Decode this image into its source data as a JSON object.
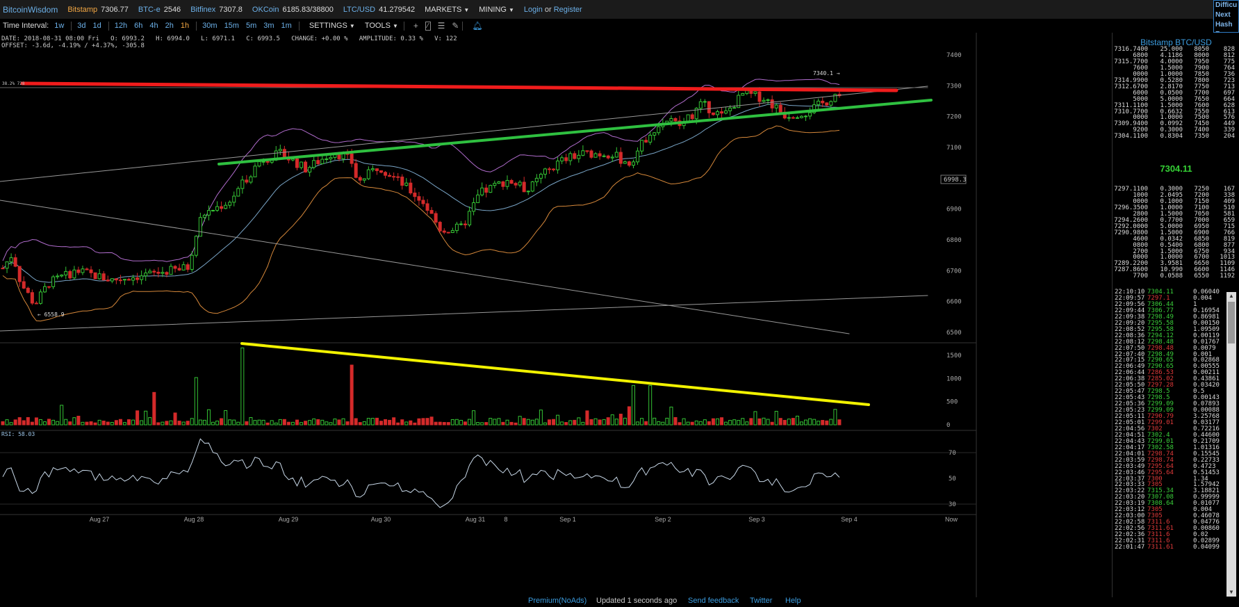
{
  "header": {
    "brand": "BitcoinWisdom",
    "markets": [
      {
        "name": "Bitstamp",
        "price": "7306.77",
        "active": true
      },
      {
        "name": "BTC-e",
        "price": "2546",
        "active": false
      },
      {
        "name": "Bitfinex",
        "price": "7307.8",
        "active": false
      },
      {
        "name": "OKCoin",
        "price": "6185.83/38800",
        "active": false
      },
      {
        "name": "LTC/USD",
        "price": "41.279542",
        "active": false
      }
    ],
    "menus": [
      "MARKETS",
      "MINING"
    ],
    "login": "Login",
    "or": "or",
    "register": "Register",
    "difficulty": [
      "Difficu",
      "Next",
      "Hash R"
    ]
  },
  "toolbar": {
    "time_interval_label": "Time Interval:",
    "intervals": [
      "1w",
      "3d",
      "1d",
      "12h",
      "6h",
      "4h",
      "2h",
      "1h",
      "30m",
      "15m",
      "5m",
      "3m",
      "1m"
    ],
    "settings": "SETTINGS",
    "tools": "TOOLS"
  },
  "info": {
    "line1": "DATE: 2018-08-31 08:00 Fri   O: 6993.2   H: 6994.0   L: 6971.1   C: 6993.5   CHANGE: +0.00 %   AMPLITUDE: 0.33 %   V: 122",
    "line2": "OFFSET: -3.6d, -4.19% / +4.37%, -305.8"
  },
  "chart": {
    "price_ticks": [
      "7400",
      "7300",
      "7200",
      "7100",
      "7000",
      "6900",
      "6800",
      "6700",
      "6600",
      "6500"
    ],
    "volume_ticks": [
      "1500",
      "1000",
      "500",
      "0"
    ],
    "rsi_ticks": [
      "70",
      "50",
      "30"
    ],
    "x_labels": [
      "Aug 27",
      "Aug 28",
      "Aug 29",
      "Aug 30",
      "Aug 31",
      "8",
      "Sep 1",
      "Sep 2",
      "Sep 3",
      "Sep 4",
      "Now"
    ],
    "current_price_tag": "6998.3",
    "high_label": "7340.1 →",
    "low_label": "← 6558.9",
    "fib_label": "38.2% 728",
    "rsi_label": "RSI: 58.03",
    "colors": {
      "up": "#35c435",
      "down": "#d42a2a",
      "red_line": "#f01c1c",
      "green_line": "#2fc040",
      "yellow_line": "#f2f200",
      "upper_band": "#b06ccc",
      "lower_band": "#d6883a",
      "mid_band": "#7aa6c8"
    }
  },
  "orderbook": {
    "title": "Bitstamp BTC/USD",
    "asks": [
      [
        "7316.7400",
        "25.000",
        "8050",
        "828"
      ],
      [
        "6800",
        "4.1186",
        "8000",
        "812"
      ],
      [
        "7315.7700",
        "4.0000",
        "7950",
        "775"
      ],
      [
        "7600",
        "1.5000",
        "7900",
        "764"
      ],
      [
        "0000",
        "1.0000",
        "7850",
        "736"
      ],
      [
        "7314.9900",
        "0.5280",
        "7800",
        "723"
      ],
      [
        "7312.6700",
        "2.8170",
        "7750",
        "713"
      ],
      [
        "6000",
        "0.0500",
        "7700",
        "697"
      ],
      [
        "5000",
        "5.0000",
        "7650",
        "664"
      ],
      [
        "7311.1100",
        "1.5000",
        "7600",
        "628"
      ],
      [
        "7310.7700",
        "0.6632",
        "7550",
        "613"
      ],
      [
        "0000",
        "1.0000",
        "7500",
        "576"
      ],
      [
        "7309.9400",
        "0.0992",
        "7450",
        "449"
      ],
      [
        "9200",
        "0.3000",
        "7400",
        "339"
      ],
      [
        "7304.1100",
        "0.8304",
        "7350",
        "204"
      ]
    ],
    "mid": "7304.11",
    "bids": [
      [
        "7297.1100",
        "0.3000",
        "7250",
        "167"
      ],
      [
        "1000",
        "2.0495",
        "7200",
        "338"
      ],
      [
        "0000",
        "0.1000",
        "7150",
        "409"
      ],
      [
        "7296.3500",
        "1.0000",
        "7100",
        "510"
      ],
      [
        "2800",
        "1.5000",
        "7050",
        "581"
      ],
      [
        "7294.2600",
        "0.7700",
        "7000",
        "659"
      ],
      [
        "7292.0000",
        "5.0000",
        "6950",
        "715"
      ],
      [
        "7290.9800",
        "1.5000",
        "6900",
        "766"
      ],
      [
        "4600",
        "0.0342",
        "6850",
        "819"
      ],
      [
        "0800",
        "0.5400",
        "6800",
        "877"
      ],
      [
        "2700",
        "1.5000",
        "6750",
        "934"
      ],
      [
        "0000",
        "1.0000",
        "6700",
        "1013"
      ],
      [
        "7289.2200",
        "3.9581",
        "6650",
        "1109"
      ],
      [
        "7287.8600",
        "10.990",
        "6600",
        "1146"
      ],
      [
        "7700",
        "0.0588",
        "6550",
        "1192"
      ]
    ]
  },
  "trades": [
    [
      "22:10:10",
      "7304.11",
      "0.06040",
      "g"
    ],
    [
      "22:09:57",
      "7297.1",
      "0.004",
      "r"
    ],
    [
      "22:09:56",
      "7306.44",
      "1",
      "g"
    ],
    [
      "22:09:44",
      "7306.77",
      "0.16954",
      "g"
    ],
    [
      "22:09:38",
      "7298.49",
      "0.86981",
      "g"
    ],
    [
      "22:09:20",
      "7295.58",
      "0.00150",
      "g"
    ],
    [
      "22:08:52",
      "7295.58",
      "1.09509",
      "g"
    ],
    [
      "22:08:36",
      "7294.12",
      "0.00119",
      "g"
    ],
    [
      "22:08:12",
      "7298.48",
      "0.01767",
      "g"
    ],
    [
      "22:07:50",
      "7298.48",
      "0.0079",
      "r"
    ],
    [
      "22:07:40",
      "7298.49",
      "0.001",
      "g"
    ],
    [
      "22:07:15",
      "7290.65",
      "0.02868",
      "g"
    ],
    [
      "22:06:49",
      "7290.65",
      "0.00555",
      "g"
    ],
    [
      "22:06:44",
      "7286.53",
      "0.00211",
      "r"
    ],
    [
      "22:06:38",
      "7285.02",
      "0.43861",
      "r"
    ],
    [
      "22:05:50",
      "7297.28",
      "0.03420",
      "r"
    ],
    [
      "22:05:47",
      "7298.5",
      "0.5",
      "g"
    ],
    [
      "22:05:43",
      "7298.5",
      "0.00143",
      "g"
    ],
    [
      "22:05:36",
      "7299.09",
      "0.07893",
      "g"
    ],
    [
      "22:05:23",
      "7299.09",
      "0.00088",
      "g"
    ],
    [
      "22:05:11",
      "7290.79",
      "3.25768",
      "r"
    ],
    [
      "22:05:01",
      "7299.01",
      "0.03177",
      "r"
    ],
    [
      "22:04:56",
      "7302",
      "0.72216",
      "r"
    ],
    [
      "22:04:51",
      "7302.4",
      "0.44600",
      "g"
    ],
    [
      "22:04:43",
      "7299.01",
      "0.21709",
      "g"
    ],
    [
      "22:04:17",
      "7302.58",
      "1.01316",
      "g"
    ],
    [
      "22:04:01",
      "7298.74",
      "0.15545",
      "r"
    ],
    [
      "22:03:59",
      "7298.74",
      "0.22733",
      "r"
    ],
    [
      "22:03:49",
      "7295.64",
      "0.4723",
      "r"
    ],
    [
      "22:03:46",
      "7295.64",
      "0.51453",
      "r"
    ],
    [
      "22:03:37",
      "7300",
      "1.34",
      "r"
    ],
    [
      "22:03:33",
      "7305",
      "1.57942",
      "r"
    ],
    [
      "22:03:22",
      "7315.34",
      "3.18821",
      "g"
    ],
    [
      "22:03:20",
      "7307.08",
      "0.99999",
      "g"
    ],
    [
      "22:03:19",
      "7308.64",
      "0.01077",
      "g"
    ],
    [
      "22:03:12",
      "7305",
      "0.004",
      "r"
    ],
    [
      "22:03:00",
      "7305",
      "0.46078",
      "r"
    ],
    [
      "22:02:58",
      "7311.6",
      "0.04776",
      "r"
    ],
    [
      "22:02:56",
      "7311.61",
      "0.00860",
      "r"
    ],
    [
      "22:02:36",
      "7311.6",
      "0.02",
      "r"
    ],
    [
      "22:02:31",
      "7311.6",
      "0.02899",
      "r"
    ],
    [
      "22:01:47",
      "7311.61",
      "0.04099",
      "r"
    ]
  ],
  "footer": {
    "premium": "Premium(NoAds)",
    "updated": "Updated 1 seconds ago",
    "feedback": "Send feedback",
    "twitter": "Twitter",
    "help": "Help"
  }
}
